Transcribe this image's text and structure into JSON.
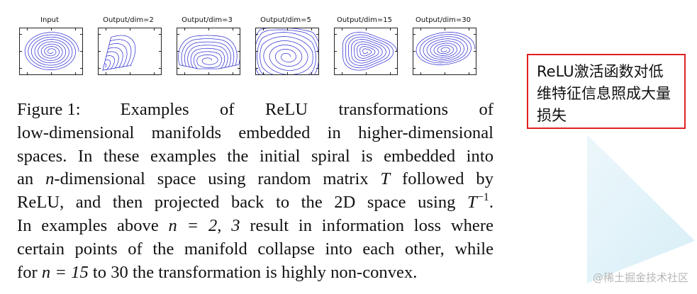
{
  "figure": {
    "panels": [
      {
        "title": "Input",
        "variant": "input"
      },
      {
        "title": "Output/dim=2",
        "variant": "dim2"
      },
      {
        "title": "Output/dim=3",
        "variant": "dim3"
      },
      {
        "title": "Output/dim=5",
        "variant": "dim5"
      },
      {
        "title": "Output/dim=15",
        "variant": "dim15"
      },
      {
        "title": "Output/dim=30",
        "variant": "dim30"
      }
    ],
    "line_color": "#1f1fd1"
  },
  "caption": {
    "label": "Figure 1:",
    "line1_rest": "Examples of ReLU transformations of",
    "line2": "low-dimensional manifolds embedded in higher-dimensional",
    "line3": "spaces.  In these examples the initial spiral is embedded into",
    "line4_pre": "an ",
    "line4_n": "n",
    "line4_mid": "-dimensional space using random matrix ",
    "line4_T": "T",
    "line4_post": " followed by",
    "line5_pre": "ReLU, and then projected back to the 2D space using ",
    "line5_T": "T",
    "line5_sup": "−1",
    "line5_post": ".",
    "line6_pre": "In examples above ",
    "line6_math": "n = 2, 3",
    "line6_post": " result in information loss where",
    "line7": "certain points of the manifold collapse into each other, while",
    "line8_pre": "for ",
    "line8_math": "n = 15",
    "line8_post": " to 30 the transformation is highly non-convex."
  },
  "note": {
    "text": "ReLU激活函数对低维特征信息照成大量损失",
    "border_color": "#e02020"
  },
  "watermark": {
    "text": "@稀土掘金技术社区"
  }
}
